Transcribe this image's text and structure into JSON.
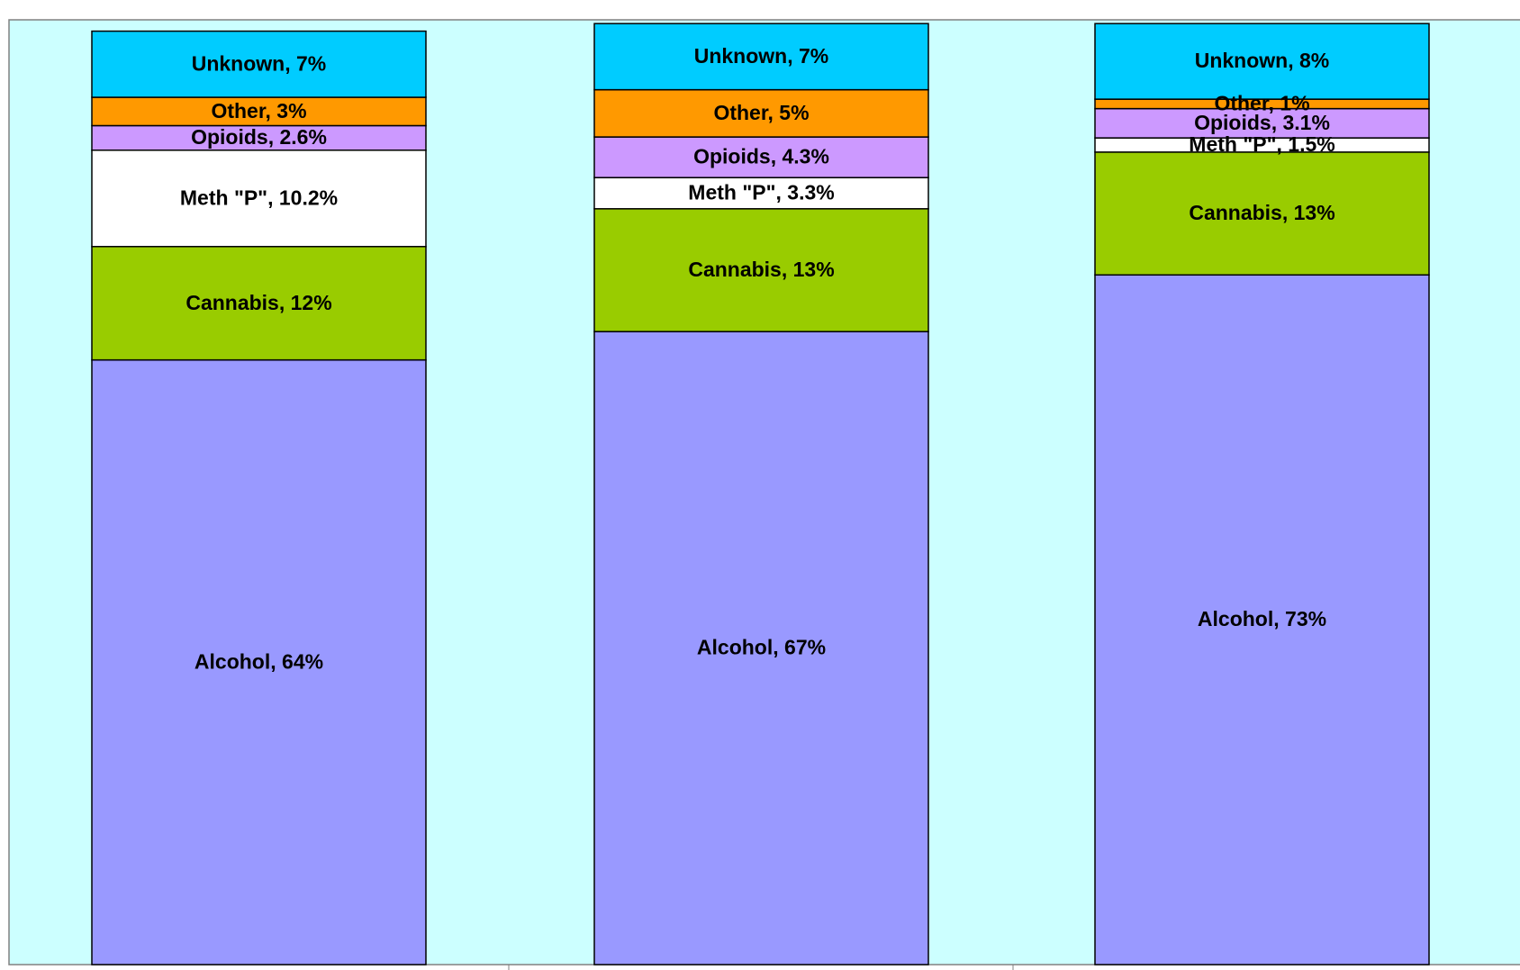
{
  "chart_data": {
    "type": "bar",
    "stacked": true,
    "categories": [
      null,
      null,
      null
    ],
    "ylim": [
      0,
      100
    ],
    "series": [
      {
        "name": "Alcohol",
        "color": "#9999ff",
        "values": [
          64,
          67,
          73
        ],
        "value_labels": [
          "Alcohol, 64%",
          "Alcohol, 67%",
          "Alcohol, 73%"
        ]
      },
      {
        "name": "Cannabis",
        "color": "#99cc00",
        "values": [
          12,
          13,
          13
        ],
        "value_labels": [
          "Cannabis, 12%",
          "Cannabis, 13%",
          "Cannabis, 13%"
        ]
      },
      {
        "name": "Meth \"P\"",
        "color": "#ffffff",
        "values": [
          10.2,
          3.3,
          1.5
        ],
        "value_labels": [
          "Meth \"P\", 10.2%",
          "Meth \"P\", 3.3%",
          "Meth \"P\", 1.5%"
        ]
      },
      {
        "name": "Opioids",
        "color": "#cc99ff",
        "values": [
          2.6,
          4.3,
          3.1
        ],
        "value_labels": [
          "Opioids, 2.6%",
          "Opioids, 4.3%",
          "Opioids, 3.1%"
        ]
      },
      {
        "name": "Other",
        "color": "#ff9900",
        "values": [
          3,
          5,
          1
        ],
        "value_labels": [
          "Other, 3%",
          "Other, 5%",
          "Other, 1%"
        ]
      },
      {
        "name": "Unknown",
        "color": "#00ccff",
        "values": [
          7,
          7,
          8
        ],
        "value_labels": [
          "Unknown, 7%",
          "Unknown, 7%",
          "Unknown, 8%"
        ]
      }
    ]
  }
}
